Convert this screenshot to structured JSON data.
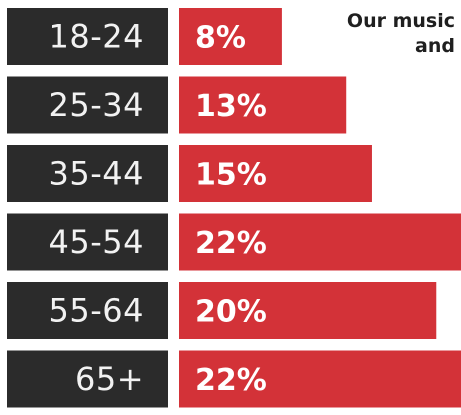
{
  "chart_data": {
    "type": "bar",
    "orientation": "horizontal",
    "title_lines": [
      "Our music",
      "and"
    ],
    "categories": [
      "18-24",
      "25-34",
      "35-44",
      "45-54",
      "55-64",
      "65+"
    ],
    "values": [
      8,
      13,
      15,
      22,
      20,
      22
    ],
    "value_labels": [
      "8%",
      "13%",
      "15%",
      "22%",
      "20%",
      "22%"
    ],
    "xlim": [
      0,
      22
    ],
    "grid": false,
    "legend": "none"
  },
  "colors": {
    "bar": "#d33238",
    "category_box": "#2b2b2b",
    "category_text": "#f2f2f2",
    "value_text": "#ffffff",
    "title_text": "#1f1f1f",
    "background": "#ffffff"
  }
}
